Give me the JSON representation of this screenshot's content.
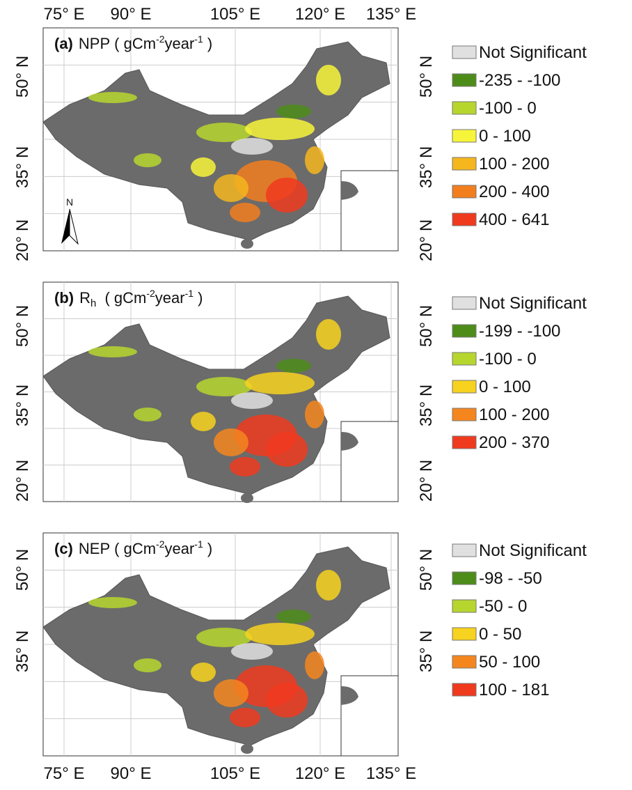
{
  "top_axis_labels": [
    "75° E",
    "90° E",
    "105° E",
    "120° E",
    "135° E"
  ],
  "bottom_axis_labels": [
    "75° E",
    "90° E",
    "105° E",
    "120° E",
    "135° E"
  ],
  "panels": [
    {
      "label": "(a)",
      "variable": "NPP",
      "unit_open": "( gCm",
      "exp1": "-2",
      "unit_mid": "year",
      "exp2": "-1",
      "unit_close": " )",
      "north_label": "N",
      "lat_labels_left": [
        "50° N",
        "35° N",
        "20° N"
      ],
      "lat_labels_right": [
        "50° N",
        "35° N",
        "20° N"
      ],
      "legend": [
        {
          "label": "Not Significant",
          "color": "#e0e0e0"
        },
        {
          "label": "-235 - -100",
          "color": "#4e8c1a"
        },
        {
          "label": "-100 - 0",
          "color": "#b6d62e"
        },
        {
          "label": "0 - 100",
          "color": "#f7f53a"
        },
        {
          "label": "100 - 200",
          "color": "#f5b61e"
        },
        {
          "label": "200 - 400",
          "color": "#f27e1e"
        },
        {
          "label": "400 - 641",
          "color": "#f03a1e"
        }
      ]
    },
    {
      "label": "(b)",
      "variable": "R",
      "variable_subscript": "h",
      "unit_open": " ( gCm",
      "exp1": "-2",
      "unit_mid": "year",
      "exp2": "-1",
      "unit_close": " )",
      "lat_labels_left": [
        "50° N",
        "35° N",
        "20° N"
      ],
      "lat_labels_right": [
        "50° N",
        "35° N",
        "20° N"
      ],
      "legend": [
        {
          "label": "Not Significant",
          "color": "#e0e0e0"
        },
        {
          "label": "-199 - -100",
          "color": "#4e8c1a"
        },
        {
          "label": "-100 - 0",
          "color": "#b6d62e"
        },
        {
          "label": "0 - 100",
          "color": "#f7d21e"
        },
        {
          "label": "100 - 200",
          "color": "#f5861e"
        },
        {
          "label": "200 - 370",
          "color": "#f03a1e"
        }
      ]
    },
    {
      "label": "(c)",
      "variable": "NEP",
      "unit_open": "( gCm",
      "exp1": "-2",
      "unit_mid": "year",
      "exp2": "-1",
      "unit_close": " )",
      "lat_labels_left": [
        "50° N",
        "35° N"
      ],
      "lat_labels_right": [
        "50° N",
        "35° N"
      ],
      "legend": [
        {
          "label": "Not Significant",
          "color": "#e0e0e0"
        },
        {
          "label": "-98 - -50",
          "color": "#4e8c1a"
        },
        {
          "label": "-50 - 0",
          "color": "#b6d62e"
        },
        {
          "label": "0 - 50",
          "color": "#f7d21e"
        },
        {
          "label": "50 - 100",
          "color": "#f5861e"
        },
        {
          "label": "100 - 181",
          "color": "#f03a1e"
        }
      ]
    }
  ]
}
